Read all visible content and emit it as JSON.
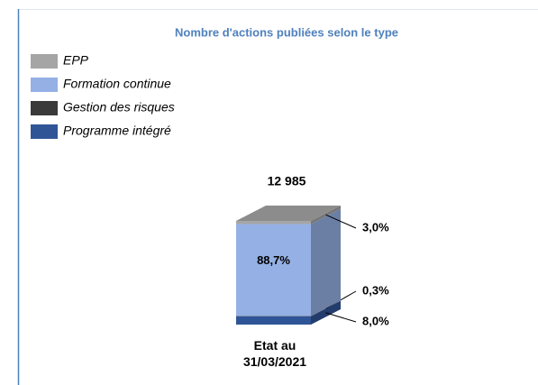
{
  "chart_data": {
    "type": "stacked_bar_3d",
    "title": "Nombre d'actions publiées selon le type",
    "categories": [
      "Etat au 31/03/2021"
    ],
    "total_label": "12 985",
    "series": [
      {
        "name": "EPP",
        "color": "#a5a5a5",
        "values": [
          3.0
        ],
        "value_labels": [
          "3,0%"
        ]
      },
      {
        "name": "Formation continue",
        "color": "#94b0e4",
        "values": [
          88.7
        ],
        "value_labels": [
          "88,7%"
        ]
      },
      {
        "name": "Gestion des risques",
        "color": "#3a3a3a",
        "values": [
          0.3
        ],
        "value_labels": [
          "0,3%"
        ]
      },
      {
        "name": "Programme intégré",
        "color": "#2f5597",
        "values": [
          8.0
        ],
        "value_labels": [
          "8,0%"
        ]
      }
    ],
    "legend": "top-left"
  }
}
